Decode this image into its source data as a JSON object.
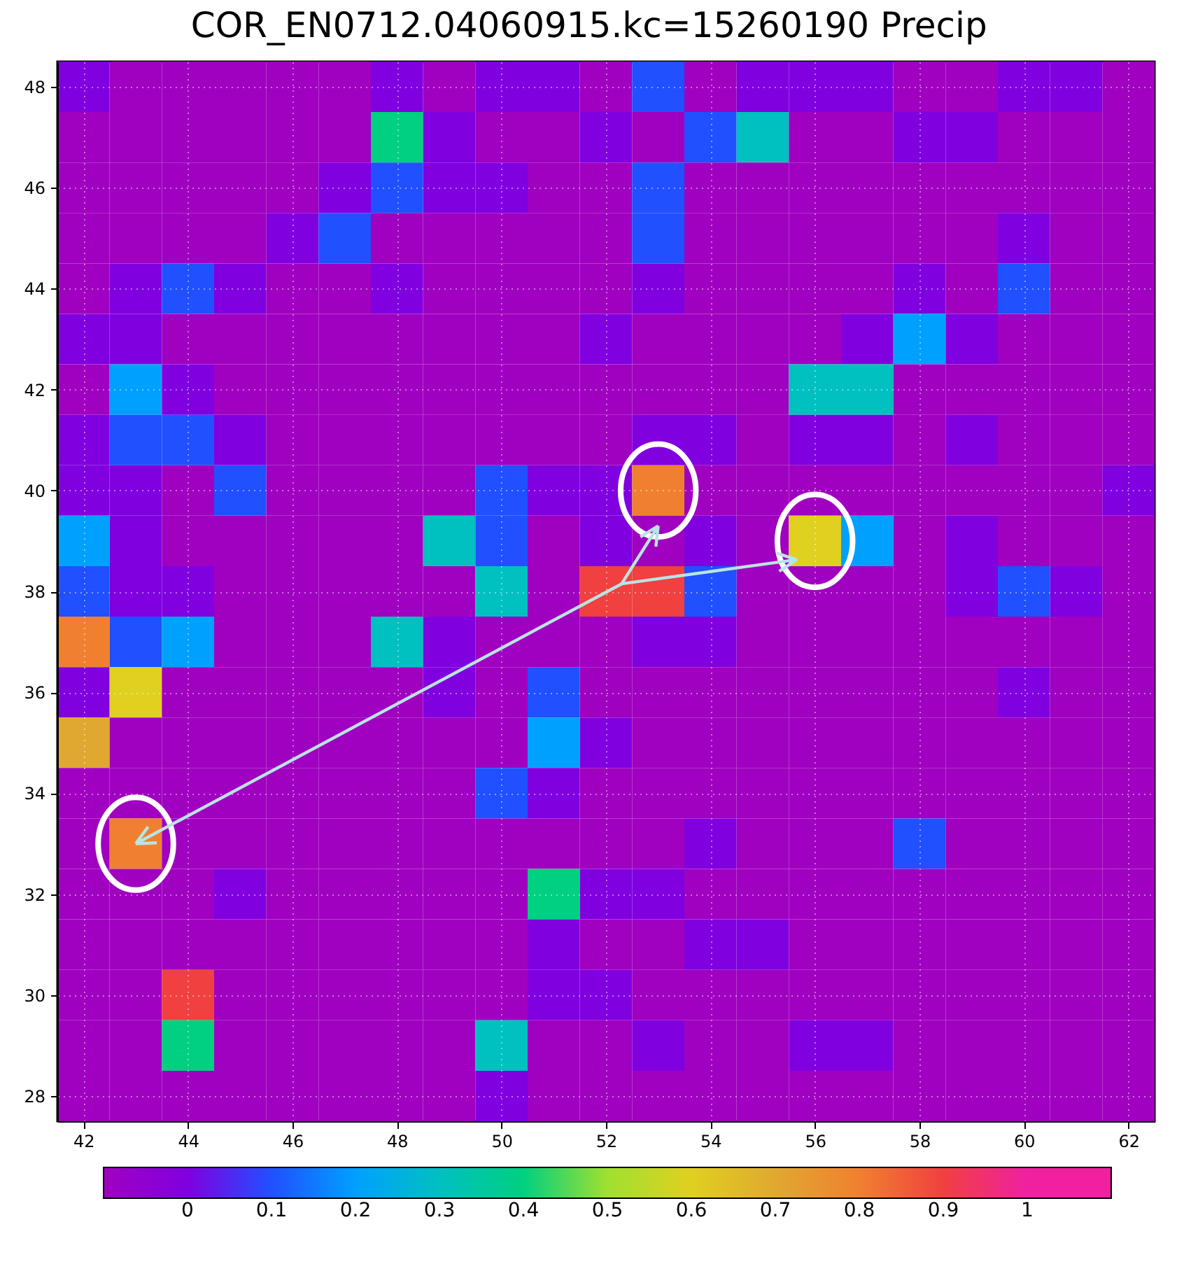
{
  "chart_data": {
    "type": "heatmap",
    "title": "COR_EN0712.04060915.kc=15260190 Precip",
    "categories": [
      "42",
      null,
      "44",
      null,
      "46",
      null,
      "48",
      null,
      "50",
      null,
      "52",
      null,
      "54",
      null,
      "56",
      null,
      "58",
      null,
      "60",
      null,
      "62"
    ],
    "y_categories": [
      "48",
      null,
      "46",
      null,
      "44",
      null,
      "42",
      null,
      "40",
      null,
      "38",
      null,
      "36",
      null,
      "34",
      null,
      "32",
      null,
      "30",
      null,
      "28"
    ],
    "cells": [
      [
        0,
        -0.1,
        -0.1,
        -0.1,
        -0.1,
        -0.1,
        0,
        -0.1,
        0,
        0,
        -0.1,
        0.1,
        -0.1,
        0,
        0,
        0,
        -0.1,
        -0.1,
        0,
        0,
        -0.1
      ],
      [
        -0.1,
        -0.1,
        -0.1,
        -0.1,
        -0.1,
        -0.1,
        0.4,
        0,
        -0.1,
        -0.1,
        0,
        -0.1,
        0.1,
        0.3,
        -0.1,
        -0.1,
        0,
        0,
        -0.1,
        -0.1,
        -0.1
      ],
      [
        -0.1,
        -0.1,
        -0.1,
        -0.1,
        -0.1,
        0,
        0.1,
        0,
        0,
        -0.1,
        -0.1,
        0.1,
        -0.1,
        -0.1,
        -0.1,
        -0.1,
        -0.1,
        -0.1,
        -0.1,
        -0.1,
        -0.1
      ],
      [
        -0.1,
        -0.1,
        -0.1,
        -0.1,
        0,
        0.1,
        -0.1,
        -0.1,
        -0.1,
        -0.1,
        -0.1,
        0.1,
        -0.1,
        -0.1,
        -0.1,
        -0.1,
        -0.1,
        -0.1,
        0,
        -0.1,
        -0.1
      ],
      [
        -0.1,
        0,
        0.1,
        0,
        -0.1,
        -0.1,
        0,
        -0.1,
        -0.1,
        -0.1,
        -0.1,
        0,
        -0.1,
        -0.1,
        -0.1,
        -0.1,
        0,
        -0.1,
        0.1,
        -0.1,
        -0.1
      ],
      [
        0,
        0,
        -0.1,
        -0.1,
        -0.1,
        -0.1,
        -0.1,
        -0.1,
        -0.1,
        -0.1,
        0,
        -0.1,
        -0.1,
        -0.1,
        -0.1,
        0,
        0.2,
        0,
        -0.1,
        -0.1,
        -0.1
      ],
      [
        -0.1,
        0.2,
        0,
        -0.1,
        -0.1,
        -0.1,
        -0.1,
        -0.1,
        -0.1,
        -0.1,
        -0.1,
        -0.1,
        -0.1,
        -0.1,
        0.3,
        0.3,
        -0.1,
        -0.1,
        -0.1,
        -0.1,
        -0.1
      ],
      [
        0,
        0.1,
        0.1,
        0,
        -0.1,
        -0.1,
        -0.1,
        -0.1,
        -0.1,
        -0.1,
        -0.1,
        0,
        0,
        -0.1,
        0,
        0,
        -0.1,
        0,
        -0.1,
        -0.1,
        -0.1
      ],
      [
        0,
        0,
        -0.1,
        0.1,
        -0.1,
        -0.1,
        -0.1,
        -0.1,
        0.1,
        0,
        0,
        0.8,
        -0.1,
        -0.1,
        -0.1,
        -0.1,
        -0.1,
        -0.1,
        -0.1,
        -0.1,
        0
      ],
      [
        0.2,
        0,
        -0.1,
        -0.1,
        -0.1,
        -0.1,
        -0.1,
        0.3,
        0.1,
        -0.1,
        0,
        -0.1,
        0,
        -0.1,
        0.6,
        0.2,
        -0.1,
        0,
        -0.1,
        -0.1,
        -0.1
      ],
      [
        0.1,
        0,
        0,
        -0.1,
        -0.1,
        -0.1,
        -0.1,
        -0.1,
        0.3,
        -0.1,
        0.9,
        0.9,
        0.1,
        -0.1,
        -0.1,
        -0.1,
        -0.1,
        0,
        0.1,
        0,
        -0.1
      ],
      [
        0.8,
        0.1,
        0.2,
        -0.1,
        -0.1,
        -0.1,
        0.3,
        0,
        -0.1,
        -0.1,
        -0.1,
        0,
        0,
        -0.1,
        -0.1,
        -0.1,
        -0.1,
        -0.1,
        -0.1,
        -0.1,
        -0.1
      ],
      [
        0,
        0.6,
        -0.1,
        -0.1,
        -0.1,
        -0.1,
        -0.1,
        0,
        -0.1,
        0.1,
        -0.1,
        -0.1,
        -0.1,
        -0.1,
        -0.1,
        -0.1,
        -0.1,
        -0.1,
        0,
        -0.1,
        -0.1
      ],
      [
        0.7,
        -0.1,
        -0.1,
        -0.1,
        -0.1,
        -0.1,
        -0.1,
        -0.1,
        -0.1,
        0.2,
        0,
        -0.1,
        -0.1,
        -0.1,
        -0.1,
        -0.1,
        -0.1,
        -0.1,
        -0.1,
        -0.1,
        -0.1
      ],
      [
        -0.1,
        -0.1,
        -0.1,
        -0.1,
        -0.1,
        -0.1,
        -0.1,
        -0.1,
        0.1,
        0,
        -0.1,
        -0.1,
        -0.1,
        -0.1,
        -0.1,
        -0.1,
        -0.1,
        -0.1,
        -0.1,
        -0.1,
        -0.1
      ],
      [
        -0.1,
        0.8,
        -0.1,
        -0.1,
        -0.1,
        -0.1,
        -0.1,
        -0.1,
        -0.1,
        -0.1,
        -0.1,
        -0.1,
        0,
        -0.1,
        -0.1,
        -0.1,
        0.1,
        -0.1,
        -0.1,
        -0.1,
        -0.1
      ],
      [
        -0.1,
        -0.1,
        -0.1,
        0,
        -0.1,
        -0.1,
        -0.1,
        -0.1,
        -0.1,
        0.4,
        0,
        0,
        -0.1,
        -0.1,
        -0.1,
        -0.1,
        -0.1,
        -0.1,
        -0.1,
        -0.1,
        -0.1
      ],
      [
        -0.1,
        -0.1,
        -0.1,
        -0.1,
        -0.1,
        -0.1,
        -0.1,
        -0.1,
        -0.1,
        0,
        -0.1,
        -0.1,
        0,
        0,
        -0.1,
        -0.1,
        -0.1,
        -0.1,
        -0.1,
        -0.1,
        -0.1
      ],
      [
        -0.1,
        -0.1,
        0.9,
        -0.1,
        -0.1,
        -0.1,
        -0.1,
        -0.1,
        -0.1,
        0,
        0,
        -0.1,
        -0.1,
        -0.1,
        -0.1,
        -0.1,
        -0.1,
        -0.1,
        -0.1,
        -0.1,
        -0.1
      ],
      [
        -0.1,
        -0.1,
        0.4,
        -0.1,
        -0.1,
        -0.1,
        -0.1,
        -0.1,
        0.3,
        -0.1,
        -0.1,
        0,
        -0.1,
        -0.1,
        0,
        0,
        -0.1,
        -0.1,
        -0.1,
        -0.1,
        -0.1
      ],
      [
        -0.1,
        -0.1,
        -0.1,
        -0.1,
        -0.1,
        -0.1,
        -0.1,
        -0.1,
        0,
        -0.1,
        -0.1,
        -0.1,
        -0.1,
        -0.1,
        -0.1,
        -0.1,
        -0.1,
        -0.1,
        -0.1,
        -0.1,
        -0.1
      ]
    ],
    "clim": [
      -0.1,
      1.1
    ],
    "cticks": [
      0,
      0.1,
      0.2,
      0.3,
      0.4,
      0.5,
      0.6,
      0.7,
      0.8,
      0.9,
      1
    ],
    "colors": [
      "#a000c0",
      "#8000e0",
      "#2050ff",
      "#00a0ff",
      "#00c0c0",
      "#00d080",
      "#a0e030",
      "#e0d020",
      "#e0a830",
      "#f08030",
      "#f04040",
      "#f020a0"
    ],
    "grid": true
  }
}
